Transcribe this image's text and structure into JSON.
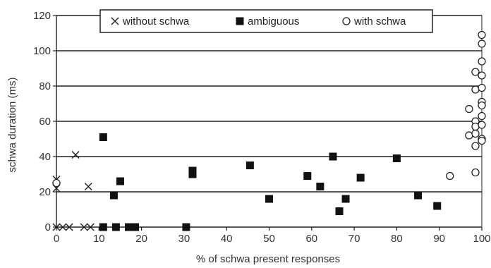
{
  "chart_data": {
    "type": "scatter",
    "title": "",
    "xlabel": "% of schwa present responses",
    "ylabel": "schwa duration (ms)",
    "xlim": [
      0,
      100
    ],
    "ylim": [
      0,
      120
    ],
    "x_ticks": [
      "0",
      "10",
      "20",
      "30",
      "40",
      "50",
      "60",
      "70",
      "80",
      "90",
      "100"
    ],
    "y_ticks": [
      "0",
      "20",
      "40",
      "60",
      "80",
      "100",
      "120"
    ],
    "grid": "horizontal",
    "legend_position": "top",
    "series": [
      {
        "name": "without schwa",
        "marker": "x",
        "color": "#222222",
        "points": [
          [
            0,
            27
          ],
          [
            0,
            22
          ],
          [
            0,
            0
          ],
          [
            1.5,
            0
          ],
          [
            3,
            0
          ],
          [
            4.5,
            41
          ],
          [
            6.5,
            0
          ],
          [
            7.5,
            23
          ],
          [
            8,
            0
          ]
        ]
      },
      {
        "name": "ambiguous",
        "marker": "square",
        "color": "#111111",
        "points": [
          [
            11,
            51
          ],
          [
            11,
            0
          ],
          [
            13.5,
            18
          ],
          [
            14,
            0
          ],
          [
            15,
            26
          ],
          [
            17,
            0
          ],
          [
            17.5,
            0
          ],
          [
            18.5,
            0
          ],
          [
            30.5,
            0
          ],
          [
            32,
            32
          ],
          [
            32,
            30
          ],
          [
            45.5,
            35
          ],
          [
            50,
            16
          ],
          [
            59,
            29
          ],
          [
            62,
            23
          ],
          [
            65,
            40
          ],
          [
            66.5,
            9
          ],
          [
            68,
            16
          ],
          [
            71.5,
            28
          ],
          [
            80,
            39
          ],
          [
            85,
            18
          ],
          [
            89.5,
            12
          ]
        ]
      },
      {
        "name": "with schwa",
        "marker": "circle",
        "color": "#222222",
        "points": [
          [
            0,
            25
          ],
          [
            92.5,
            29
          ],
          [
            97,
            67
          ],
          [
            97,
            52
          ],
          [
            98.5,
            88
          ],
          [
            98.5,
            78
          ],
          [
            98.5,
            60
          ],
          [
            98.5,
            57
          ],
          [
            98.5,
            53
          ],
          [
            98.5,
            46
          ],
          [
            98.5,
            31
          ],
          [
            100,
            109
          ],
          [
            100,
            104
          ],
          [
            100,
            94
          ],
          [
            100,
            86
          ],
          [
            100,
            79
          ],
          [
            100,
            71
          ],
          [
            100,
            69
          ],
          [
            100,
            63
          ],
          [
            100,
            58
          ],
          [
            100,
            50
          ],
          [
            100,
            49
          ]
        ]
      }
    ]
  }
}
